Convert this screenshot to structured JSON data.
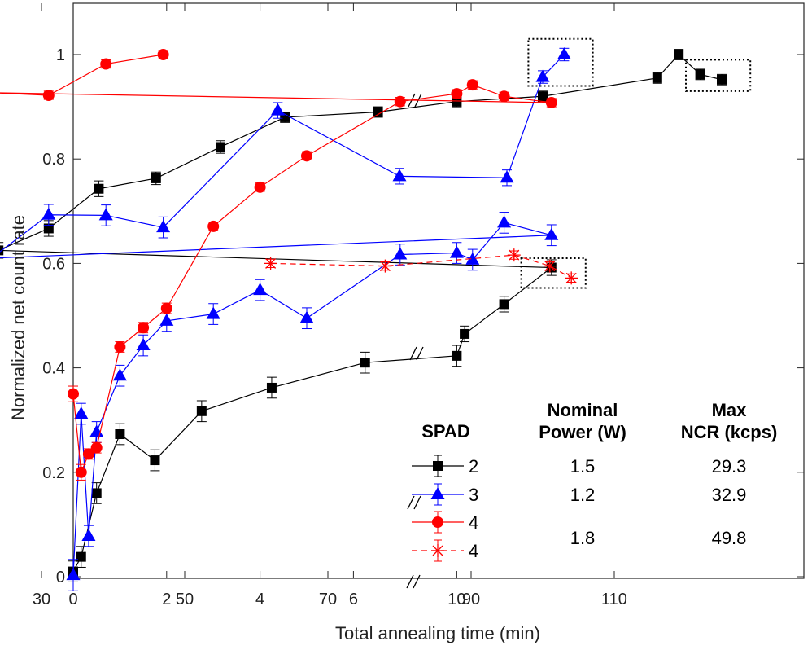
{
  "chart_data": {
    "type": "line",
    "xlabel": "Total annealing time (min)",
    "ylabel": "Normalized net count rate",
    "ylim": [
      0,
      1.1
    ],
    "x_breaks": [
      {
        "range": [
          0,
          7.3
        ],
        "scale": "linear",
        "ticks": [
          "0",
          "2",
          "4",
          "6"
        ],
        "tick_values": [
          0,
          2,
          4,
          6
        ]
      },
      {
        "range": [
          7.3,
          20
        ],
        "scale": "compressed",
        "ticks": [
          "10"
        ],
        "tick_values": [
          10
        ]
      },
      {
        "range": [
          20,
          130
        ],
        "scale": "linear",
        "ticks": [
          "30",
          "50",
          "70",
          "90",
          "110"
        ],
        "tick_values": [
          30,
          50,
          70,
          90,
          110
        ]
      }
    ],
    "y_ticks": [
      "0",
      "0.2",
      "0.4",
      "0.6",
      "0.8",
      "1"
    ],
    "y_tick_values": [
      0,
      0.2,
      0.4,
      0.6,
      0.8,
      1.0
    ],
    "series": [
      {
        "name": "2",
        "color": "#000000",
        "marker": "square",
        "line": "solid",
        "points": [
          {
            "x": 0,
            "y": 0.01,
            "err": 0.02
          },
          {
            "x": 0.17,
            "y": 0.038,
            "err": 0.02
          },
          {
            "x": 0.5,
            "y": 0.16,
            "err": 0.02
          },
          {
            "x": 1.0,
            "y": 0.273,
            "err": 0.02
          },
          {
            "x": 1.75,
            "y": 0.223,
            "err": 0.02
          },
          {
            "x": 2.75,
            "y": 0.317,
            "err": 0.02
          },
          {
            "x": 4.25,
            "y": 0.362,
            "err": 0.02
          },
          {
            "x": 6.25,
            "y": 0.41,
            "err": 0.02
          },
          {
            "x": 10,
            "y": 0.423,
            "err": 0.02
          },
          {
            "x": 10.5,
            "y": 0.465,
            "err": 0.015
          },
          {
            "x": 13,
            "y": 0.522,
            "err": 0.015
          },
          {
            "x": 16,
            "y": 0.592,
            "err": 0.015
          },
          {
            "x": 24,
            "y": 0.625,
            "err": 0.015
          },
          {
            "x": 31,
            "y": 0.667,
            "err": 0.015
          },
          {
            "x": 38,
            "y": 0.743,
            "err": 0.015
          },
          {
            "x": 46,
            "y": 0.763,
            "err": 0.012
          },
          {
            "x": 55,
            "y": 0.823,
            "err": 0.012
          },
          {
            "x": 64,
            "y": 0.88,
            "err": 0.01
          },
          {
            "x": 77,
            "y": 0.89,
            "err": 0.01
          },
          {
            "x": 88,
            "y": 0.91,
            "err": 0.01
          },
          {
            "x": 100,
            "y": 0.92,
            "err": 0.01
          },
          {
            "x": 116,
            "y": 0.955,
            "err": 0.01
          },
          {
            "x": 119,
            "y": 1.0,
            "err": 0.01
          },
          {
            "x": 122,
            "y": 0.962,
            "err": 0.01
          },
          {
            "x": 125,
            "y": 0.952,
            "err": 0.01
          }
        ]
      },
      {
        "name": "3",
        "color": "#0000ff",
        "marker": "triangle",
        "line": "solid",
        "points": [
          {
            "x": 0,
            "y": 0.003,
            "err": 0.03
          },
          {
            "x": 0.17,
            "y": 0.312,
            "err": 0.02
          },
          {
            "x": 0.33,
            "y": 0.078,
            "err": 0.02
          },
          {
            "x": 0.5,
            "y": 0.277,
            "err": 0.02
          },
          {
            "x": 1.0,
            "y": 0.385,
            "err": 0.02
          },
          {
            "x": 1.5,
            "y": 0.443,
            "err": 0.02
          },
          {
            "x": 2.0,
            "y": 0.49,
            "err": 0.02
          },
          {
            "x": 3.0,
            "y": 0.503,
            "err": 0.02
          },
          {
            "x": 4.0,
            "y": 0.549,
            "err": 0.02
          },
          {
            "x": 5.0,
            "y": 0.495,
            "err": 0.02
          },
          {
            "x": 7.0,
            "y": 0.617,
            "err": 0.02
          },
          {
            "x": 10,
            "y": 0.62,
            "err": 0.02
          },
          {
            "x": 11,
            "y": 0.607,
            "err": 0.02
          },
          {
            "x": 13,
            "y": 0.678,
            "err": 0.02
          },
          {
            "x": 16,
            "y": 0.654,
            "err": 0.02
          },
          {
            "x": 23,
            "y": 0.61,
            "err": 0.02
          },
          {
            "x": 31,
            "y": 0.693,
            "err": 0.02
          },
          {
            "x": 39,
            "y": 0.692,
            "err": 0.02
          },
          {
            "x": 47,
            "y": 0.669,
            "err": 0.02
          },
          {
            "x": 63,
            "y": 0.893,
            "err": 0.015
          },
          {
            "x": 80,
            "y": 0.767,
            "err": 0.015
          },
          {
            "x": 95,
            "y": 0.764,
            "err": 0.015
          },
          {
            "x": 100,
            "y": 0.957,
            "err": 0.012
          },
          {
            "x": 103,
            "y": 1.0,
            "err": 0.012
          }
        ]
      },
      {
        "name": "4",
        "color": "#ff0000",
        "marker": "circle",
        "line": "solid",
        "points": [
          {
            "x": 0,
            "y": 0.35,
            "err": 0.015
          },
          {
            "x": 0.17,
            "y": 0.2,
            "err": 0.015
          },
          {
            "x": 0.33,
            "y": 0.235,
            "err": 0.01
          },
          {
            "x": 0.5,
            "y": 0.247,
            "err": 0.01
          },
          {
            "x": 1.0,
            "y": 0.44,
            "err": 0.01
          },
          {
            "x": 1.5,
            "y": 0.477,
            "err": 0.01
          },
          {
            "x": 2.0,
            "y": 0.514,
            "err": 0.01
          },
          {
            "x": 3.0,
            "y": 0.671,
            "err": 0.008
          },
          {
            "x": 4.0,
            "y": 0.746,
            "err": 0.008
          },
          {
            "x": 5.0,
            "y": 0.806,
            "err": 0.008
          },
          {
            "x": 7.0,
            "y": 0.91,
            "err": 0.008
          },
          {
            "x": 10,
            "y": 0.925,
            "err": 0.008
          },
          {
            "x": 11,
            "y": 0.942,
            "err": 0.008
          },
          {
            "x": 13,
            "y": 0.92,
            "err": 0.008
          },
          {
            "x": 16,
            "y": 0.908,
            "err": 0.008
          },
          {
            "x": 23,
            "y": 0.927,
            "err": 0.008
          },
          {
            "x": 31,
            "y": 0.922,
            "err": 0.008
          },
          {
            "x": 39,
            "y": 0.982,
            "err": 0.008
          },
          {
            "x": 47,
            "y": 1.0,
            "err": 0.008
          }
        ]
      },
      {
        "name": "4",
        "color": "#ff0000",
        "marker": "asterisk",
        "line": "dashed",
        "points": [
          {
            "x": 62,
            "y": 0.6,
            "err": 0.008
          },
          {
            "x": 78,
            "y": 0.595,
            "err": 0.008
          },
          {
            "x": 96,
            "y": 0.616,
            "err": 0.008
          },
          {
            "x": 101,
            "y": 0.595,
            "err": 0.008
          },
          {
            "x": 104,
            "y": 0.572,
            "err": 0.008
          }
        ]
      }
    ],
    "highlight_boxes": [
      {
        "series": "3",
        "x_range": [
          98,
          107
        ],
        "y_range": [
          0.94,
          1.03
        ]
      },
      {
        "series": "2",
        "x_range": [
          120,
          129
        ],
        "y_range": [
          0.93,
          0.99
        ]
      },
      {
        "series": "4 (dashed)",
        "x_range": [
          97,
          106
        ],
        "y_range": [
          0.553,
          0.61
        ]
      }
    ],
    "legend": {
      "placement": "bottom-right",
      "headers": {
        "spad": "SPAD",
        "power_line1": "Nominal",
        "power_line2": "Power (W)",
        "ncr_line1": "Max",
        "ncr_line2": "NCR (kcps)"
      },
      "entries": [
        {
          "label": "2",
          "power": "1.5",
          "ncr": "29.3"
        },
        {
          "label": "3",
          "power": "1.2",
          "ncr": "32.9"
        },
        {
          "label": "4",
          "power": "",
          "ncr": ""
        },
        {
          "label": "4",
          "power": "",
          "ncr": ""
        }
      ],
      "shared_row": {
        "power": "1.8",
        "ncr": "49.8"
      }
    }
  }
}
